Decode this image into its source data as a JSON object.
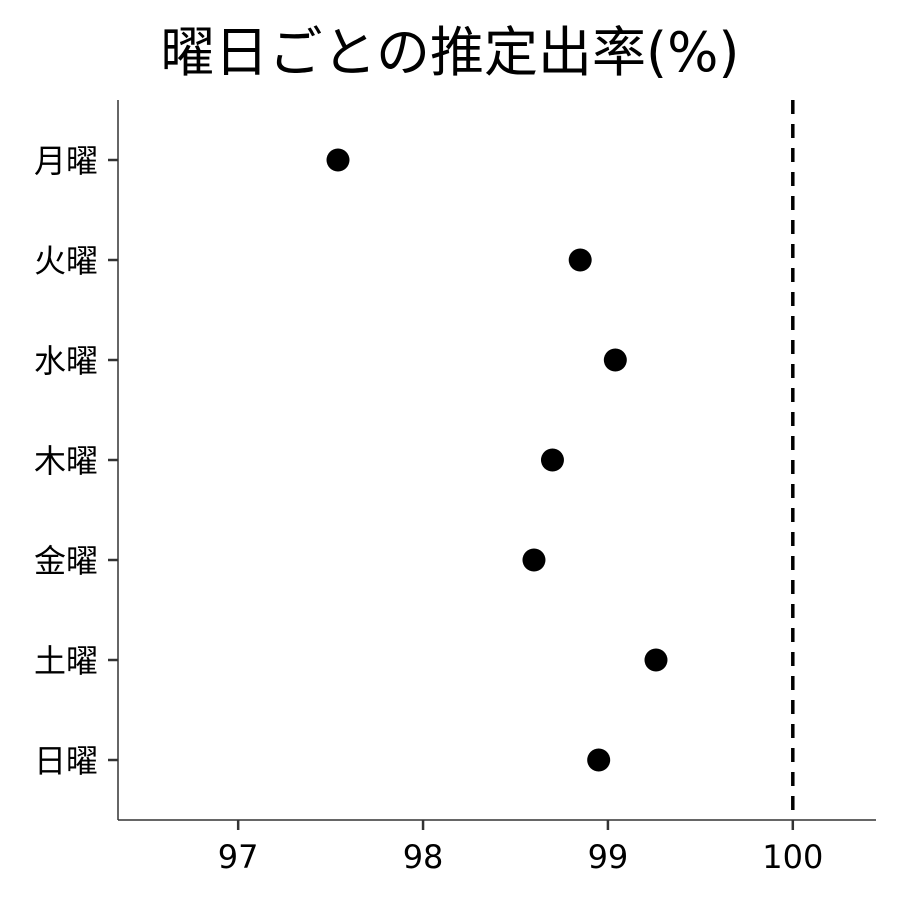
{
  "chart_data": {
    "type": "scatter",
    "title": "曜日ごとの推定出率(%)",
    "xlabel": "",
    "ylabel": "",
    "categories": [
      "月曜",
      "火曜",
      "水曜",
      "木曜",
      "金曜",
      "土曜",
      "日曜"
    ],
    "values": [
      97.54,
      98.85,
      99.04,
      98.7,
      98.6,
      99.26,
      98.95
    ],
    "xlim": [
      96.35,
      100.45
    ],
    "x_ticks": [
      97,
      98,
      99,
      100
    ],
    "x_tick_labels": [
      "97",
      "98",
      "99",
      "100"
    ],
    "reference_line": {
      "x": 100,
      "style": "dashed"
    },
    "grid": false,
    "legend": "none",
    "point_color": "#000000",
    "axis_color": "#333333"
  }
}
